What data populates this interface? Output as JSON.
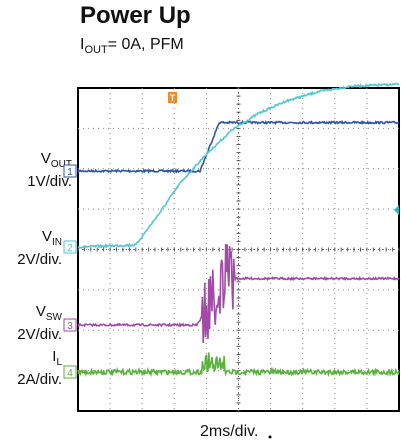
{
  "header": {
    "title": "Power Up",
    "subtitle_main": "I",
    "subtitle_sub": "OUT",
    "subtitle_rest": "= 0A, PFM"
  },
  "chart_data": {
    "type": "line",
    "title": "Power Up",
    "subtitle": "IOUT= 0A, PFM",
    "xlabel": "2ms/div.",
    "x_divisions": 10,
    "y_divisions": 8,
    "grid": true,
    "trigger_marker": "T",
    "series": [
      {
        "name": "VOUT",
        "channel": "1",
        "scale": "1V/div.",
        "color": "#2f55a8",
        "points": [
          [
            0,
            0
          ],
          [
            3.8,
            0
          ],
          [
            4.05,
            0.5
          ],
          [
            4.4,
            1.2
          ],
          [
            10,
            1.2
          ]
        ]
      },
      {
        "name": "VIN",
        "channel": "2",
        "scale": "2V/div.",
        "color": "#4fc8d4",
        "points": [
          [
            0,
            0
          ],
          [
            1.8,
            0.05
          ],
          [
            2.5,
            0.8
          ],
          [
            3.2,
            1.6
          ],
          [
            4.0,
            2.3
          ],
          [
            4.8,
            2.9
          ],
          [
            5.6,
            3.3
          ],
          [
            6.5,
            3.62
          ],
          [
            7.5,
            3.85
          ],
          [
            8.5,
            3.98
          ],
          [
            10,
            4.03
          ]
        ]
      },
      {
        "name": "VSW",
        "channel": "3",
        "scale": "2V/div.",
        "color": "#a24aa8",
        "points": [
          [
            0,
            0
          ],
          [
            3.7,
            0
          ],
          [
            4.6,
            1.15
          ],
          [
            10,
            1.15
          ]
        ]
      },
      {
        "name": "IL",
        "channel": "4",
        "scale": "2A/div.",
        "color": "#58b33a",
        "points": [
          [
            0,
            0
          ],
          [
            3.7,
            0
          ],
          [
            4.55,
            0
          ],
          [
            10,
            0
          ]
        ]
      }
    ]
  },
  "labels": {
    "vout": {
      "main": "V",
      "sub": "OUT",
      "scale": "1V/div."
    },
    "vin": {
      "main": "V",
      "sub": "IN",
      "scale": "2V/div."
    },
    "vsw": {
      "main": "V",
      "sub": "SW",
      "scale": "2V/div."
    },
    "il": {
      "main": "I",
      "sub": "L",
      "scale": "2A/div."
    }
  },
  "channel_markers": [
    "1",
    "2",
    "3",
    "4"
  ]
}
